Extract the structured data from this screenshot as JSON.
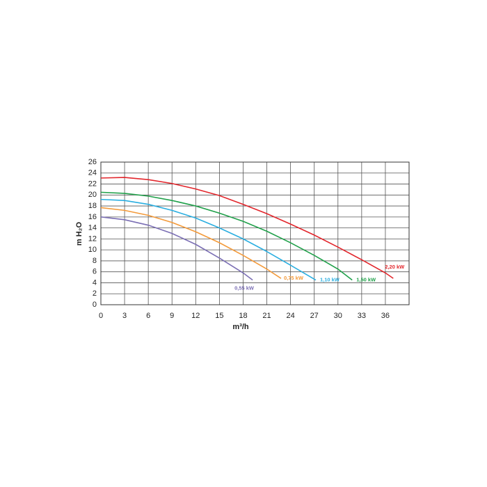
{
  "chart_data": {
    "type": "line",
    "x_label": "m³/h",
    "y_label": "m H₂O",
    "xlim": [
      0,
      39
    ],
    "ylim": [
      0,
      26
    ],
    "xticks": [
      0,
      3,
      6,
      9,
      12,
      15,
      18,
      21,
      24,
      27,
      30,
      33,
      36
    ],
    "yticks": [
      0,
      2,
      4,
      6,
      8,
      10,
      12,
      14,
      16,
      18,
      20,
      22,
      24,
      26
    ],
    "grid": true,
    "series": [
      {
        "name": "0,55 kW",
        "color": "#7b6fb4",
        "x": [
          0,
          3,
          6,
          9,
          12,
          15,
          18,
          19.2
        ],
        "values": [
          16,
          15.5,
          14.5,
          13,
          11,
          8.5,
          5.8,
          4.5
        ]
      },
      {
        "name": "0,75 kW",
        "color": "#f39a3a",
        "x": [
          0,
          3,
          6,
          9,
          12,
          15,
          18,
          21,
          22.8
        ],
        "values": [
          17.7,
          17.2,
          16.3,
          15,
          13.3,
          11.3,
          9,
          6.5,
          4.8
        ]
      },
      {
        "name": "1,10 kW",
        "color": "#2aaee0",
        "x": [
          0,
          3,
          6,
          9,
          12,
          15,
          18,
          21,
          24,
          27.2
        ],
        "values": [
          19.2,
          19,
          18.3,
          17.2,
          15.8,
          14,
          12,
          9.7,
          7.2,
          4.5
        ]
      },
      {
        "name": "1,50 kW",
        "color": "#20a04a",
        "x": [
          0,
          3,
          6,
          9,
          12,
          15,
          18,
          21,
          24,
          27,
          30,
          31.8
        ],
        "values": [
          20.5,
          20.3,
          19.8,
          19,
          18,
          16.7,
          15.2,
          13.4,
          11.3,
          9,
          6.5,
          4.5
        ]
      },
      {
        "name": "2,20 kW",
        "color": "#e2262c",
        "x": [
          0,
          3,
          6,
          9,
          12,
          15,
          18,
          21,
          24,
          27,
          30,
          33,
          36,
          37
        ],
        "values": [
          23.1,
          23.2,
          22.8,
          22.1,
          21.1,
          19.9,
          18.3,
          16.6,
          14.7,
          12.7,
          10.5,
          8.2,
          5.8,
          4.8
        ]
      }
    ]
  }
}
